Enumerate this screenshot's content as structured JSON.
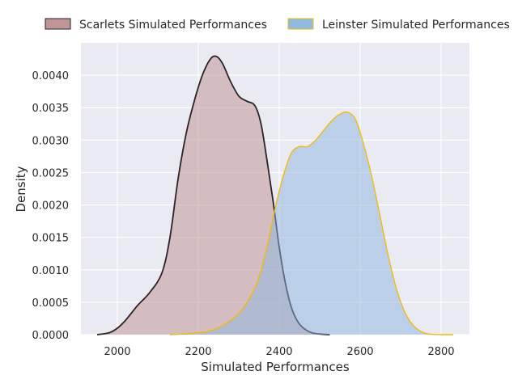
{
  "chart_data": {
    "type": "area",
    "title": "",
    "xlabel": "Simulated Performances",
    "ylabel": "Density",
    "xlim": [
      1910,
      2870
    ],
    "ylim": [
      0,
      0.0045
    ],
    "xticks": [
      2000,
      2200,
      2400,
      2600,
      2800
    ],
    "yticks": [
      0,
      0.0005,
      0.001,
      0.0015,
      0.002,
      0.0025,
      0.003,
      0.0035,
      0.004
    ],
    "ytick_labels": [
      "0.0000",
      "0.0005",
      "0.0010",
      "0.0015",
      "0.0020",
      "0.0025",
      "0.0030",
      "0.0035",
      "0.0040"
    ],
    "xtick_labels": [
      "2000",
      "2200",
      "2400",
      "2600",
      "2800"
    ],
    "grid": true,
    "legend_position": "top",
    "series": [
      {
        "name": "Scarlets Simulated Performances",
        "fill_color": "#bc8f8f",
        "line_color": "#2b2327",
        "x": [
          1950,
          1980,
          2000,
          2020,
          2050,
          2080,
          2110,
          2130,
          2150,
          2170,
          2190,
          2210,
          2230,
          2245,
          2260,
          2280,
          2300,
          2320,
          2340,
          2355,
          2370,
          2385,
          2400,
          2415,
          2430,
          2445,
          2460,
          2480,
          2500,
          2525
        ],
        "values": [
          0.0,
          3e-05,
          0.0001,
          0.00022,
          0.00045,
          0.00065,
          0.00095,
          0.0015,
          0.0024,
          0.0031,
          0.0036,
          0.004,
          0.00425,
          0.00429,
          0.00418,
          0.0039,
          0.00368,
          0.0036,
          0.00353,
          0.00325,
          0.00268,
          0.00205,
          0.00135,
          0.0008,
          0.00042,
          0.00021,
          0.0001,
          3e-05,
          1e-05,
          0.0
        ]
      },
      {
        "name": "Leinster Simulated Performances",
        "fill_color": "#8bb6dd",
        "line_color": "#f2ba0e",
        "x": [
          2130,
          2160,
          2200,
          2240,
          2280,
          2310,
          2330,
          2345,
          2360,
          2375,
          2390,
          2410,
          2430,
          2450,
          2470,
          2490,
          2510,
          2530,
          2550,
          2570,
          2590,
          2610,
          2630,
          2650,
          2670,
          2690,
          2710,
          2730,
          2750,
          2770,
          2800,
          2830
        ],
        "values": [
          0.0,
          1e-05,
          3e-05,
          8e-05,
          0.00022,
          0.0004,
          0.0006,
          0.0008,
          0.0011,
          0.0015,
          0.00195,
          0.00245,
          0.0028,
          0.0029,
          0.0029,
          0.003,
          0.00315,
          0.0033,
          0.0034,
          0.00343,
          0.0033,
          0.0029,
          0.0024,
          0.0018,
          0.0012,
          0.0007,
          0.00035,
          0.00015,
          5e-05,
          1e-05,
          0.0,
          0.0
        ]
      }
    ]
  }
}
